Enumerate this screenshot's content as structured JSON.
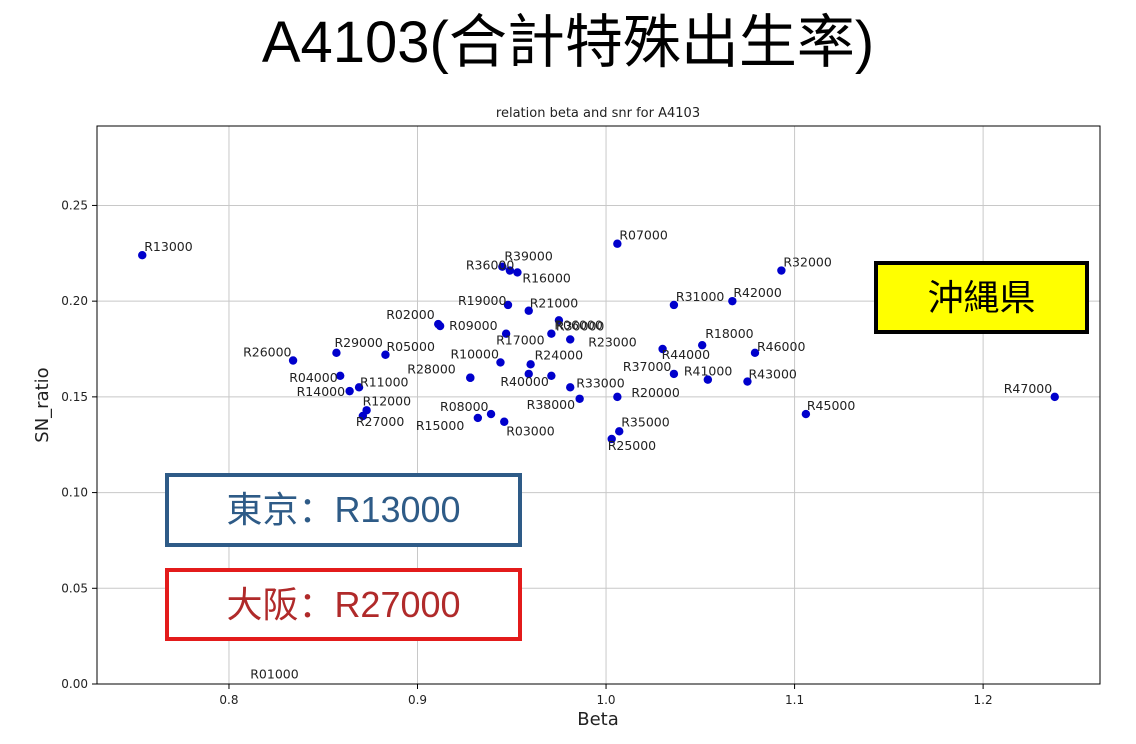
{
  "slide": {
    "title": "A4103(合計特殊出生率)"
  },
  "callouts": {
    "okinawa": {
      "text": "沖縄県",
      "bg": "#ffff00",
      "border": "#000000",
      "color": "#000000"
    },
    "tokyo": {
      "text": "東京：R13000",
      "border": "#2e5b87",
      "color": "#2e5b87"
    },
    "osaka": {
      "text": "大阪：R27000",
      "border": "#e31b1b",
      "color": "#b02a2a"
    }
  },
  "chart_data": {
    "type": "scatter",
    "title": "relation beta and snr for A4103",
    "xlabel": "Beta",
    "ylabel": "SN_ratio",
    "xlim": [
      0.73,
      1.262
    ],
    "ylim": [
      0.0,
      0.2915
    ],
    "x_ticks": [
      0.8,
      0.9,
      1.0,
      1.1,
      1.2
    ],
    "x_tick_labels": [
      "0.8",
      "0.9",
      "1.0",
      "1.1",
      "1.2"
    ],
    "y_ticks": [
      0.0,
      0.05,
      0.1,
      0.15,
      0.2,
      0.25
    ],
    "y_tick_labels": [
      "0.00",
      "0.05",
      "0.10",
      "0.15",
      "0.20",
      "0.25"
    ],
    "grid": true,
    "marker_color": "#0000cc",
    "points": [
      {
        "label": "R13000",
        "x": 0.754,
        "y": 0.224
      },
      {
        "label": "R07000",
        "x": 1.006,
        "y": 0.23
      },
      {
        "label": "R39000",
        "x": 0.945,
        "y": 0.218
      },
      {
        "label": "R36000",
        "x": 0.949,
        "y": 0.216
      },
      {
        "label": "R16000",
        "x": 0.953,
        "y": 0.215
      },
      {
        "label": "R32000",
        "x": 1.093,
        "y": 0.216
      },
      {
        "label": "R19000",
        "x": 0.948,
        "y": 0.198
      },
      {
        "label": "R21000",
        "x": 0.959,
        "y": 0.195
      },
      {
        "label": "R31000",
        "x": 1.036,
        "y": 0.198
      },
      {
        "label": "R42000",
        "x": 1.067,
        "y": 0.2
      },
      {
        "label": "R02000",
        "x": 0.911,
        "y": 0.188
      },
      {
        "label": "R09000",
        "x": 0.912,
        "y": 0.187
      },
      {
        "label": "R30000",
        "x": 0.975,
        "y": 0.19
      },
      {
        "label": "R17000",
        "x": 0.947,
        "y": 0.183
      },
      {
        "label": "R23000",
        "x": 0.981,
        "y": 0.18
      },
      {
        "label": "R18000",
        "x": 1.051,
        "y": 0.177
      },
      {
        "label": "R29000",
        "x": 0.857,
        "y": 0.173
      },
      {
        "label": "R26000",
        "x": 0.834,
        "y": 0.169
      },
      {
        "label": "R05000",
        "x": 0.883,
        "y": 0.172
      },
      {
        "label": "R10000",
        "x": 0.944,
        "y": 0.168
      },
      {
        "label": "R06000",
        "x": 0.971,
        "y": 0.183
      },
      {
        "label": "R44000",
        "x": 1.03,
        "y": 0.175
      },
      {
        "label": "R46000",
        "x": 1.079,
        "y": 0.173
      },
      {
        "label": "R28000",
        "x": 0.928,
        "y": 0.16
      },
      {
        "label": "R24000",
        "x": 0.96,
        "y": 0.167
      },
      {
        "label": "R37000",
        "x": 1.036,
        "y": 0.162
      },
      {
        "label": "R41000",
        "x": 1.054,
        "y": 0.159
      },
      {
        "label": "R43000",
        "x": 1.075,
        "y": 0.158
      },
      {
        "label": "R04000",
        "x": 0.859,
        "y": 0.161
      },
      {
        "label": "R40000",
        "x": 0.971,
        "y": 0.161
      },
      {
        "label": "R11000",
        "x": 0.869,
        "y": 0.155
      },
      {
        "label": "R33000",
        "x": 0.981,
        "y": 0.155
      },
      {
        "label": "R14000",
        "x": 0.864,
        "y": 0.153
      },
      {
        "label": "R20000",
        "x": 1.006,
        "y": 0.15
      },
      {
        "label": "R47000",
        "x": 1.238,
        "y": 0.15
      },
      {
        "label": "R12000",
        "x": 0.873,
        "y": 0.143
      },
      {
        "label": "R38000",
        "x": 0.986,
        "y": 0.149
      },
      {
        "label": "R27000",
        "x": 0.871,
        "y": 0.14
      },
      {
        "label": "R08000",
        "x": 0.939,
        "y": 0.141
      },
      {
        "label": "R45000",
        "x": 1.106,
        "y": 0.141
      },
      {
        "label": "R15000",
        "x": 0.932,
        "y": 0.139
      },
      {
        "label": "R03000",
        "x": 0.946,
        "y": 0.137
      },
      {
        "label": "R35000",
        "x": 1.007,
        "y": 0.132
      },
      {
        "label": "R25000",
        "x": 1.003,
        "y": 0.128
      },
      {
        "label": "R01000",
        "x": 0.85,
        "y": 0.003
      },
      {
        "label": "",
        "x": 0.959,
        "y": 0.162
      },
      {
        "label": "",
        "x": 0.928,
        "y": 0.16
      }
    ]
  }
}
